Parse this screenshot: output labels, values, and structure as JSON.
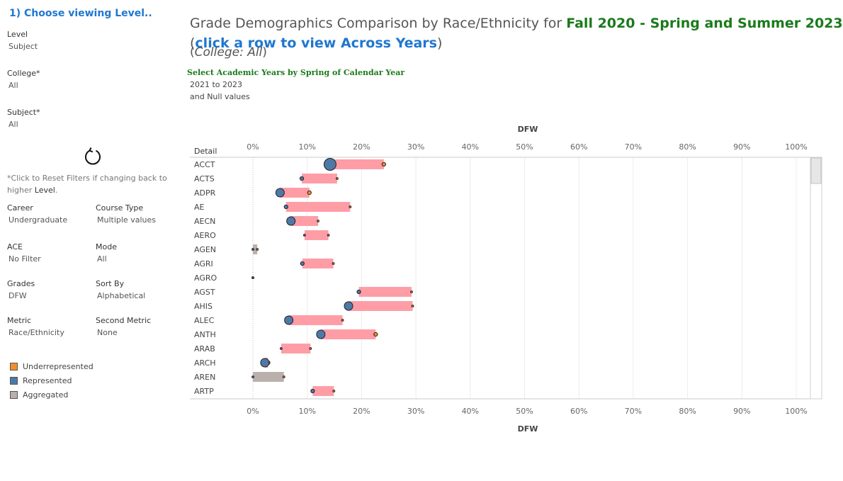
{
  "sidebar": {
    "step_title": "1) Choose viewing Level..",
    "level": {
      "label": "Level",
      "value": "Subject"
    },
    "college": {
      "label": "College*",
      "value": "All"
    },
    "subject": {
      "label": "Subject*",
      "value": "All"
    },
    "reset_note_pre": "*Click to Reset Filters if changing back to higher ",
    "reset_note_bold": "Level",
    "reset_note_post": ".",
    "career": {
      "label": "Career",
      "value": "Undergraduate"
    },
    "course_type": {
      "label": "Course Type",
      "value": "Multiple values"
    },
    "ace": {
      "label": "ACE",
      "value": "No Filter"
    },
    "mode": {
      "label": "Mode",
      "value": "All"
    },
    "grades": {
      "label": "Grades",
      "value": "DFW"
    },
    "sort_by": {
      "label": "Sort By",
      "value": "Alphabetical"
    },
    "metric": {
      "label": "Metric",
      "value": "Race/Ethnicity"
    },
    "second_metric": {
      "label": "Second Metric",
      "value": "None"
    },
    "legend": [
      {
        "label": "Underrepresented",
        "color": "#f28e2b"
      },
      {
        "label": "Represented",
        "color": "#4e79a7"
      },
      {
        "label": "Aggregated",
        "color": "#bab0ac"
      }
    ]
  },
  "header": {
    "title_pre": "Grade Demographics Comparison by Race/Ethnicity for ",
    "title_term": "Fall 2020 - Spring and Summer 2023",
    "title_link_open": "(",
    "title_link": "click a row to view Across Years",
    "title_link_close": ")",
    "college_open": "(",
    "college_text": "College: All",
    "college_close": ")",
    "years_title": "Select Academic Years by Spring of Calendar Year",
    "years_value_1": "2021 to 2023",
    "years_value_2": "and Null values"
  },
  "chart_data": {
    "type": "dumbbell",
    "xlabel": "DFW",
    "ylabel": "Detail",
    "xlim": [
      0,
      100
    ],
    "x_ticks": [
      "0%",
      "10%",
      "20%",
      "30%",
      "40%",
      "50%",
      "60%",
      "70%",
      "80%",
      "90%",
      "100%"
    ],
    "grid": true,
    "colors": {
      "range_bar": "#ff9da7",
      "aggregated_bar": "#bab0ac",
      "underrepresented": "#f28e2b",
      "represented": "#4e79a7"
    },
    "rows": [
      {
        "category": "ACCT",
        "bar": "range",
        "represented": 14.2,
        "underrepresented": 24.1,
        "rep_size": "large",
        "under_size": "small"
      },
      {
        "category": "ACTS",
        "bar": "range",
        "represented": 9.0,
        "underrepresented": 15.5,
        "rep_size": "small",
        "under_size": "tiny"
      },
      {
        "category": "ADPR",
        "bar": "range",
        "represented": 5.0,
        "underrepresented": 10.4,
        "rep_size": "medium",
        "under_size": "small"
      },
      {
        "category": "AE",
        "bar": "range",
        "represented": 6.1,
        "underrepresented": 17.9,
        "rep_size": "small",
        "under_size": "tiny"
      },
      {
        "category": "AECN",
        "bar": "range",
        "represented": 7.0,
        "underrepresented": 12.0,
        "rep_size": "medium",
        "under_size": "tiny"
      },
      {
        "category": "AERO",
        "bar": "range",
        "represented": 9.5,
        "underrepresented": 13.9,
        "rep_size": "tiny",
        "under_size": "tiny"
      },
      {
        "category": "AGEN",
        "bar": "aggregated",
        "represented": 0.0,
        "underrepresented": 0.8,
        "rep_size": "tiny",
        "under_size": "tiny"
      },
      {
        "category": "AGRI",
        "bar": "range",
        "represented": 9.1,
        "underrepresented": 14.8,
        "rep_size": "small",
        "under_size": "tiny"
      },
      {
        "category": "AGRO",
        "bar": "none",
        "represented": 0.0,
        "underrepresented": 0.0,
        "rep_size": "tiny",
        "under_size": "tiny"
      },
      {
        "category": "AGST",
        "bar": "range",
        "represented": 19.5,
        "underrepresented": 29.2,
        "rep_size": "small",
        "under_size": "tiny"
      },
      {
        "category": "AHIS",
        "bar": "range",
        "represented": 17.6,
        "underrepresented": 29.4,
        "rep_size": "medium",
        "under_size": "tiny"
      },
      {
        "category": "ALEC",
        "bar": "range",
        "represented": 6.6,
        "underrepresented": 16.5,
        "rep_size": "medium",
        "under_size": "tiny"
      },
      {
        "category": "ANTH",
        "bar": "range",
        "represented": 12.5,
        "underrepresented": 22.6,
        "rep_size": "medium",
        "under_size": "small"
      },
      {
        "category": "ARAB",
        "bar": "range",
        "represented": 5.2,
        "underrepresented": 10.6,
        "rep_size": "tiny",
        "under_size": "tiny"
      },
      {
        "category": "ARCH",
        "bar": "range",
        "represented": 2.2,
        "underrepresented": 2.8,
        "rep_size": "medium",
        "under_size": "small"
      },
      {
        "category": "AREN",
        "bar": "aggregated",
        "represented": 0.0,
        "underrepresented": 5.7,
        "rep_size": "tiny",
        "under_size": "tiny"
      },
      {
        "category": "ARTP",
        "bar": "range",
        "represented": 11.0,
        "underrepresented": 14.9,
        "rep_size": "small",
        "under_size": "tiny"
      }
    ]
  }
}
